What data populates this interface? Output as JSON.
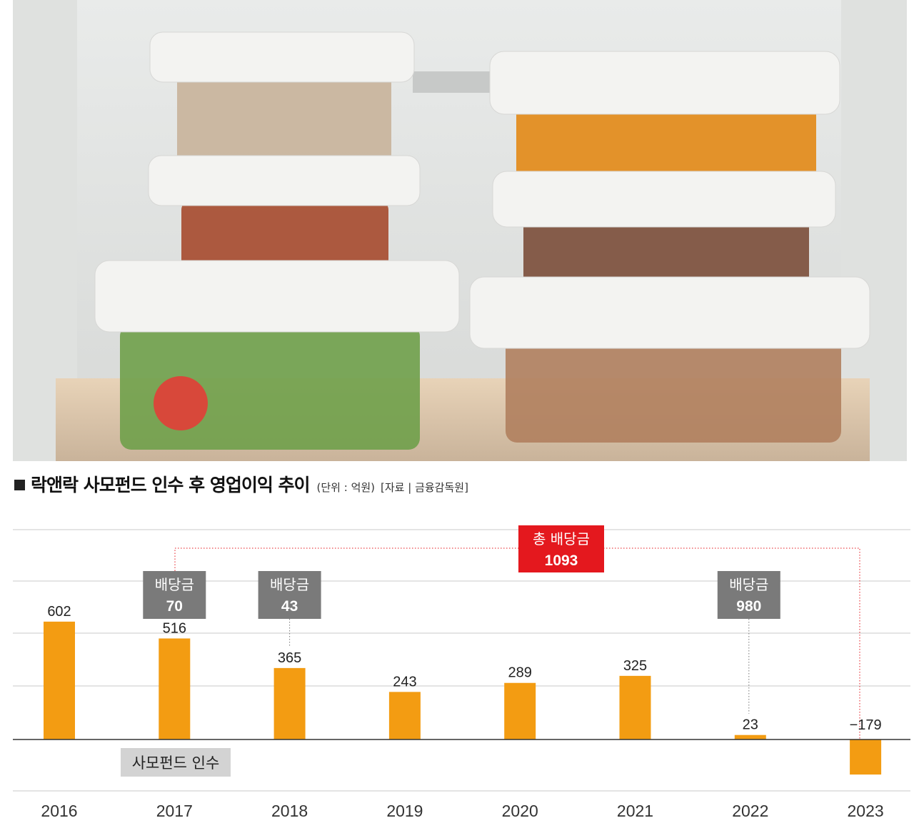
{
  "header": {
    "title": "락앤락 사모펀드 인수 후 영업이익 추이",
    "unit": "(단위 : 억원)",
    "source": "[자료 | 금융감독원]"
  },
  "photo": {
    "icon": "food-containers-photo"
  },
  "colors": {
    "bar": "#F39C12",
    "total_box": "#E4181E",
    "dividend_box": "#7A7A7A",
    "acq_box": "#D3D3D3"
  },
  "chart_data": {
    "type": "bar",
    "categories": [
      "2016",
      "2017",
      "2018",
      "2019",
      "2020",
      "2021",
      "2022",
      "2023"
    ],
    "values": [
      602,
      516,
      365,
      243,
      289,
      325,
      23,
      -179
    ],
    "value_labels": [
      "602",
      "516",
      "365",
      "243",
      "289",
      "325",
      "23",
      "−179"
    ],
    "ylabel": "",
    "ylim": [
      -300,
      1200
    ],
    "grid": true,
    "annotations": {
      "dividends": [
        {
          "year": "2017",
          "label": "배당금",
          "value": "70"
        },
        {
          "year": "2018",
          "label": "배당금",
          "value": "43"
        },
        {
          "year": "2022",
          "label": "배당금",
          "value": "980"
        }
      ],
      "total_dividend": {
        "label": "총 배당금",
        "value": "1093",
        "from": "2017",
        "to": "2023"
      },
      "acquisition": {
        "year": "2017",
        "label": "사모펀드 인수"
      }
    }
  }
}
